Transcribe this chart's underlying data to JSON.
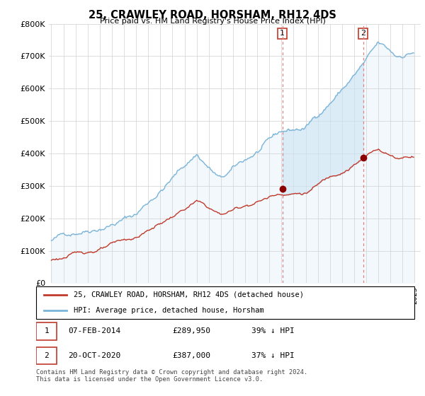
{
  "title": "25, CRAWLEY ROAD, HORSHAM, RH12 4DS",
  "subtitle": "Price paid vs. HM Land Registry's House Price Index (HPI)",
  "ylim": [
    0,
    800000
  ],
  "yticks": [
    0,
    100000,
    200000,
    300000,
    400000,
    500000,
    600000,
    700000,
    800000
  ],
  "hpi_color": "#7ab4d8",
  "price_color": "#c0392b",
  "marker1_price": 289950,
  "marker2_price": 387000,
  "sale1_year": 2014.08,
  "sale2_year": 2020.75,
  "legend_line1": "25, CRAWLEY ROAD, HORSHAM, RH12 4DS (detached house)",
  "legend_line2": "HPI: Average price, detached house, Horsham",
  "table_row1": [
    "1",
    "07-FEB-2014",
    "£289,950",
    "39% ↓ HPI"
  ],
  "table_row2": [
    "2",
    "20-OCT-2020",
    "£387,000",
    "37% ↓ HPI"
  ],
  "footer": "Contains HM Land Registry data © Crown copyright and database right 2024.\nThis data is licensed under the Open Government Licence v3.0.",
  "background_color": "#ffffff",
  "grid_color": "#d0d0d0"
}
